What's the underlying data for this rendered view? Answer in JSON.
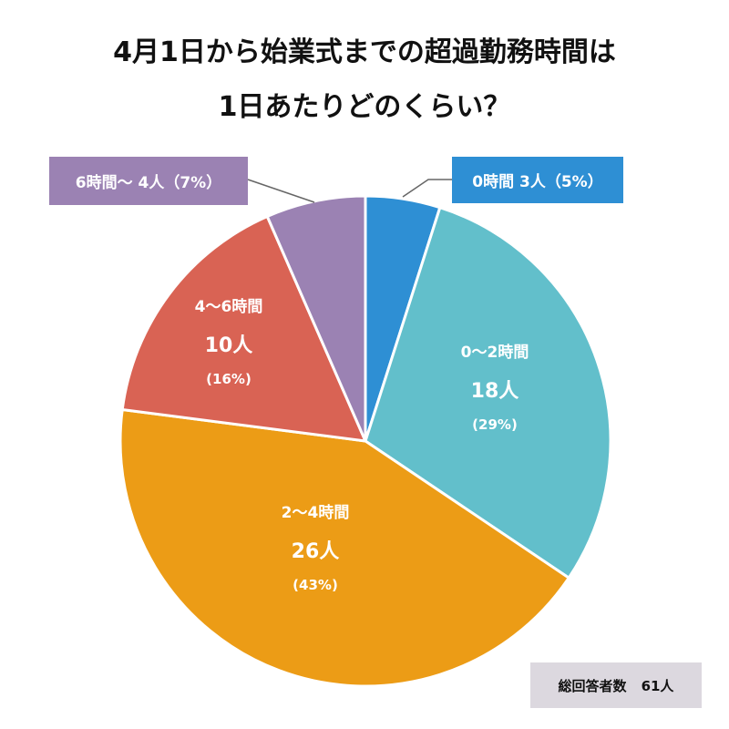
{
  "title": {
    "line1": "4月1日から始業式までの超過勤務時間は",
    "line2": "1日あたりどのくらい？"
  },
  "total": {
    "label": "総回答者数",
    "value": "61人"
  },
  "callouts": {
    "purple": "6時間～ 4人（7%）",
    "blue": "0時間 3人（5%）"
  },
  "slices": [
    {
      "category": "0時間",
      "count_label": "3人",
      "pct_label": "(5%)",
      "color": "#2e8fd4",
      "label_mode": "callout"
    },
    {
      "category": "0～2時間",
      "count_label": "18人",
      "pct_label": "(29%)",
      "color": "#62bfcb",
      "label_mode": "inside"
    },
    {
      "category": "2～4時間",
      "count_label": "26人",
      "pct_label": "(43%)",
      "color": "#ec9c16",
      "label_mode": "inside"
    },
    {
      "category": "4～6時間",
      "count_label": "10人",
      "pct_label": "(16%)",
      "color": "#d96354",
      "label_mode": "inside"
    },
    {
      "category": "6時間～",
      "count_label": "4人",
      "pct_label": "(7%)",
      "color": "#9b82b3",
      "label_mode": "callout"
    }
  ],
  "chart_data": {
    "type": "pie",
    "title": "4月1日から始業式までの超過勤務時間は1日あたりどのくらい？",
    "categories": [
      "0時間",
      "0～2時間",
      "2～4時間",
      "4～6時間",
      "6時間～"
    ],
    "values": [
      3,
      18,
      26,
      10,
      4
    ],
    "percentages": [
      5,
      29,
      43,
      16,
      7
    ],
    "unit": "人",
    "total": 61,
    "colors": [
      "#2e8fd4",
      "#62bfcb",
      "#ec9c16",
      "#d96354",
      "#9b82b3"
    ],
    "start_angle": "12 o'clock",
    "direction": "clockwise",
    "legend": "none (labels on slices and callouts)",
    "annotation": "総回答者数 61人"
  }
}
